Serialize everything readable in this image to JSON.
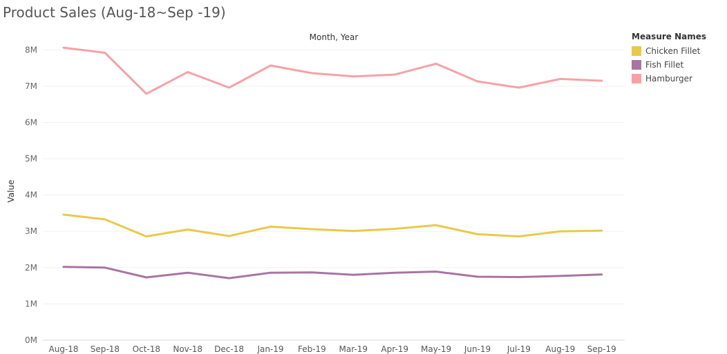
{
  "title": "Product Sales (Aug-18~Sep -19)",
  "chart_data": {
    "type": "line",
    "title": "Product Sales (Aug-18~Sep -19)",
    "xlabel": "Month, Year",
    "ylabel": "Value",
    "categories": [
      "Aug-18",
      "Sep-18",
      "Oct-18",
      "Nov-18",
      "Dec-18",
      "Jan-19",
      "Feb-19",
      "Mar-19",
      "Apr-19",
      "May-19",
      "Jun-19",
      "Jul-19",
      "Aug-19",
      "Sep-19"
    ],
    "ylim": [
      0,
      8500000
    ],
    "yticks": [
      {
        "value": 0,
        "label": "0M"
      },
      {
        "value": 1000000,
        "label": "1M"
      },
      {
        "value": 2000000,
        "label": "2M"
      },
      {
        "value": 3000000,
        "label": "3M"
      },
      {
        "value": 4000000,
        "label": "4M"
      },
      {
        "value": 5000000,
        "label": "5M"
      },
      {
        "value": 6000000,
        "label": "6M"
      },
      {
        "value": 7000000,
        "label": "7M"
      },
      {
        "value": 8000000,
        "label": "8M"
      }
    ],
    "grid": true,
    "legend_title": "Measure Names",
    "legend_position": "top-right",
    "series": [
      {
        "name": "Chicken Fillet",
        "color": "#e9c948",
        "values": [
          3460000,
          3330000,
          2860000,
          3050000,
          2870000,
          3130000,
          3060000,
          3010000,
          3070000,
          3170000,
          2920000,
          2860000,
          3000000,
          3020000
        ]
      },
      {
        "name": "Fish Fillet",
        "color": "#a874a1",
        "values": [
          2020000,
          2000000,
          1730000,
          1860000,
          1710000,
          1860000,
          1870000,
          1800000,
          1860000,
          1890000,
          1750000,
          1740000,
          1770000,
          1810000
        ]
      },
      {
        "name": "Hamburger",
        "color": "#f7a1a6",
        "values": [
          8060000,
          7920000,
          6790000,
          7390000,
          6960000,
          7570000,
          7360000,
          7270000,
          7320000,
          7620000,
          7130000,
          6960000,
          7200000,
          7150000
        ]
      }
    ]
  }
}
